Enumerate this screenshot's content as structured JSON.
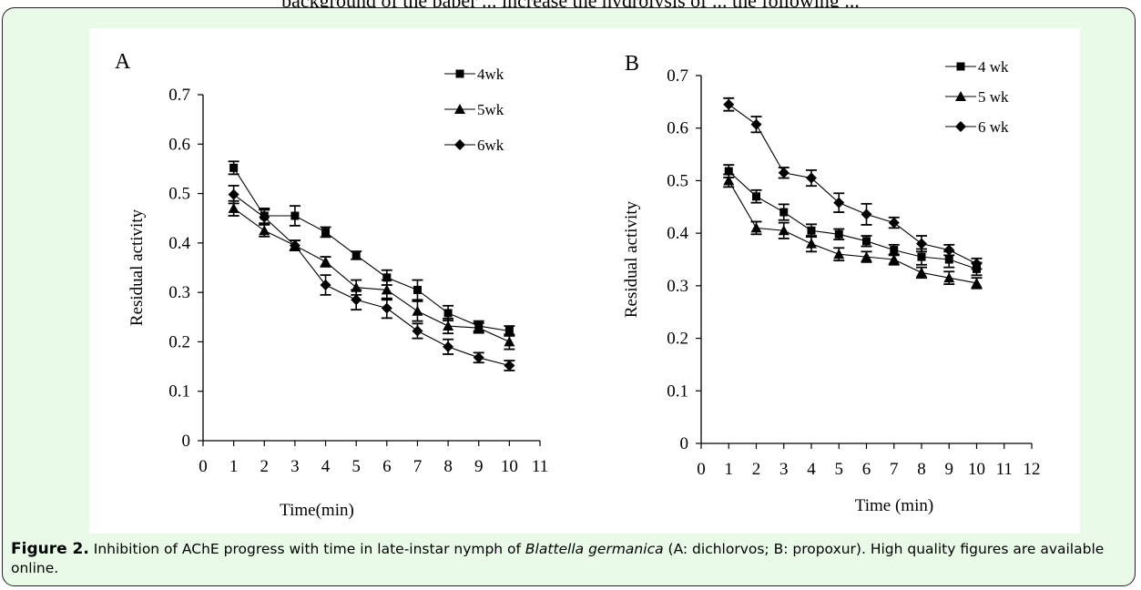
{
  "page": {
    "top_text": "background of the paper ... increase the hydrolysis of ... the following ..."
  },
  "caption": {
    "figure_label": "Figure 2.",
    "text_before": " Inhibition of AChE progress with time in late-instar nymph of ",
    "species": "Blattella germanica",
    "text_after": " (A: dichlorvos; B: propoxur). High quality figures are available online."
  },
  "colors": {
    "panel_background": "#e9fbe8",
    "plot_background": "#ffffff",
    "ink": "#000000"
  },
  "chart_data": [
    {
      "type": "line",
      "panel_label": "A",
      "xlabel": "Time(min)",
      "ylabel": "Residual activity",
      "xlim": [
        0,
        11
      ],
      "ylim": [
        0,
        0.7
      ],
      "x_ticks": [
        "0",
        "1",
        "2",
        "3",
        "4",
        "5",
        "6",
        "7",
        "8",
        "9",
        "10",
        "11"
      ],
      "y_ticks": [
        "0",
        "0.1",
        "0.2",
        "0.3",
        "0.4",
        "0.5",
        "0.6",
        "0.7"
      ],
      "grid": false,
      "legend_position": "top-right",
      "x": [
        1,
        2,
        3,
        4,
        5,
        6,
        7,
        8,
        9,
        10
      ],
      "series": [
        {
          "name": "4wk",
          "marker": "square",
          "values": [
            0.552,
            0.455,
            0.455,
            0.422,
            0.375,
            0.33,
            0.305,
            0.258,
            0.232,
            0.222
          ],
          "errors": [
            0.013,
            0.015,
            0.02,
            0.01,
            0.008,
            0.015,
            0.02,
            0.015,
            0.01,
            0.01
          ]
        },
        {
          "name": "5wk",
          "marker": "triangle",
          "values": [
            0.47,
            0.425,
            0.395,
            0.362,
            0.31,
            0.305,
            0.262,
            0.232,
            0.228,
            0.2
          ],
          "errors": [
            0.015,
            0.012,
            0.01,
            0.01,
            0.015,
            0.02,
            0.02,
            0.015,
            0.01,
            0.015
          ]
        },
        {
          "name": "6wk",
          "marker": "diamond",
          "values": [
            0.498,
            0.452,
            0.395,
            0.315,
            0.285,
            0.268,
            0.222,
            0.19,
            0.168,
            0.152
          ],
          "errors": [
            0.018,
            0.015,
            0.01,
            0.02,
            0.02,
            0.02,
            0.015,
            0.015,
            0.01,
            0.01
          ]
        }
      ]
    },
    {
      "type": "line",
      "panel_label": "B",
      "xlabel": "Time (min)",
      "ylabel": "Residual activity",
      "xlim": [
        0,
        12
      ],
      "ylim": [
        0,
        0.7
      ],
      "x_ticks": [
        "0",
        "1",
        "2",
        "3",
        "4",
        "5",
        "6",
        "7",
        "8",
        "9",
        "10",
        "11",
        "12"
      ],
      "y_ticks": [
        "0",
        "0.1",
        "0.2",
        "0.3",
        "0.4",
        "0.5",
        "0.6",
        "0.7"
      ],
      "grid": false,
      "legend_position": "top-right",
      "x": [
        1,
        2,
        3,
        4,
        5,
        6,
        7,
        8,
        9,
        10
      ],
      "series": [
        {
          "name": "4 wk",
          "marker": "square",
          "values": [
            0.518,
            0.47,
            0.44,
            0.405,
            0.398,
            0.385,
            0.368,
            0.355,
            0.35,
            0.332
          ],
          "errors": [
            0.012,
            0.012,
            0.015,
            0.012,
            0.01,
            0.01,
            0.01,
            0.015,
            0.015,
            0.012
          ]
        },
        {
          "name": "5 wk",
          "marker": "triangle",
          "values": [
            0.5,
            0.41,
            0.405,
            0.38,
            0.36,
            0.355,
            0.35,
            0.325,
            0.315,
            0.305
          ],
          "errors": [
            0.012,
            0.012,
            0.015,
            0.015,
            0.012,
            0.01,
            0.01,
            0.01,
            0.012,
            0.01
          ]
        },
        {
          "name": "6 wk",
          "marker": "diamond",
          "values": [
            0.645,
            0.607,
            0.515,
            0.505,
            0.458,
            0.436,
            0.42,
            0.38,
            0.368,
            0.342
          ],
          "errors": [
            0.012,
            0.015,
            0.01,
            0.015,
            0.018,
            0.02,
            0.01,
            0.015,
            0.01,
            0.01
          ]
        }
      ]
    }
  ]
}
